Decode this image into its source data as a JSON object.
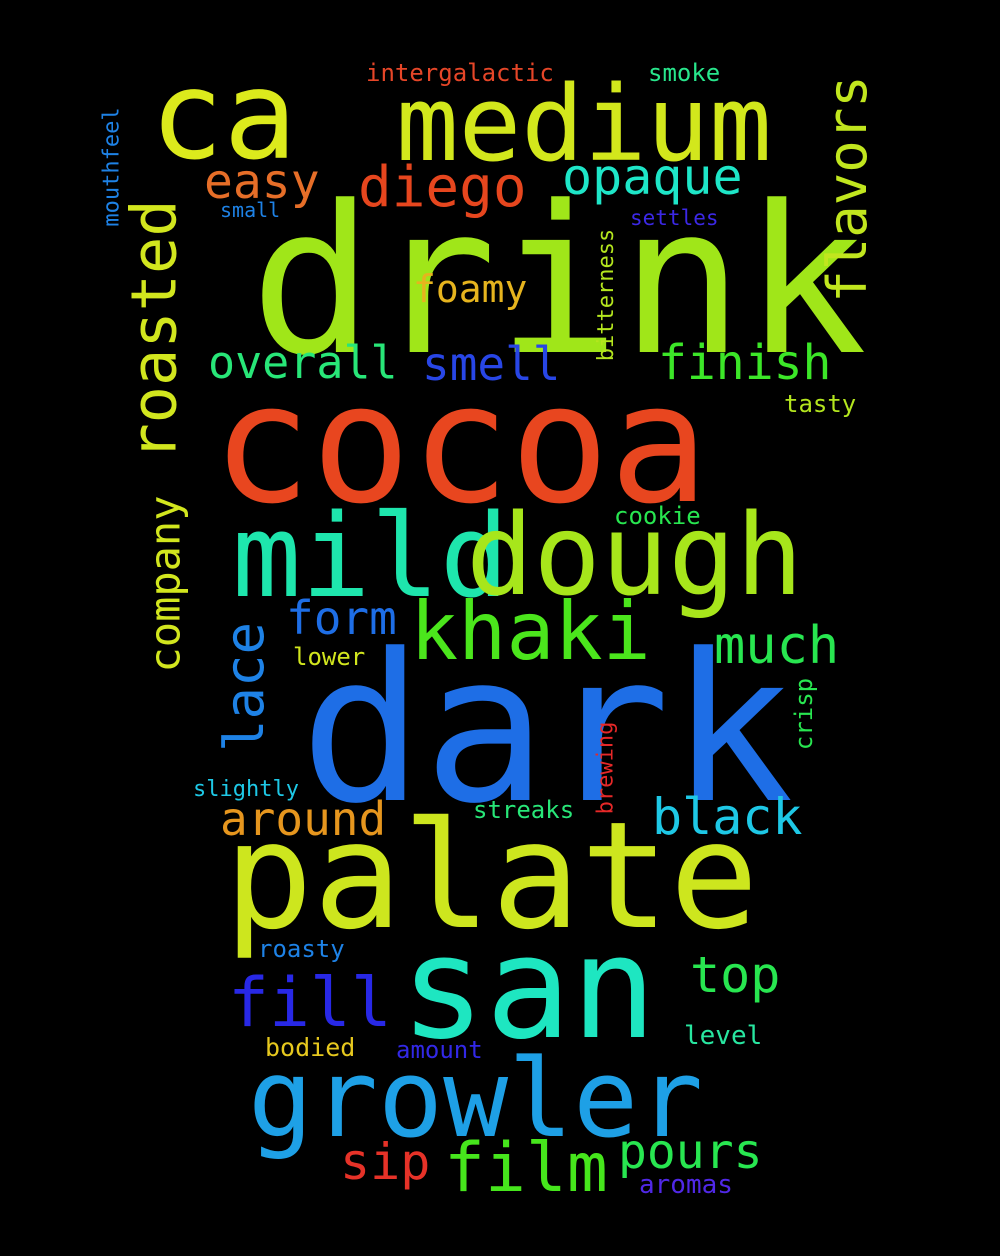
{
  "background": "#000000",
  "words": [
    {
      "id": "drink",
      "text": "drink",
      "color": "#a0e619",
      "rotated": false
    },
    {
      "id": "cocoa",
      "text": "cocoa",
      "color": "#e8461f",
      "rotated": false
    },
    {
      "id": "dark",
      "text": "dark",
      "color": "#1e6ee6",
      "rotated": false
    },
    {
      "id": "palate",
      "text": "palate",
      "color": "#cde61e",
      "rotated": false
    },
    {
      "id": "ca",
      "text": "ca",
      "color": "#dcea1c",
      "rotated": false
    },
    {
      "id": "medium",
      "text": "medium",
      "color": "#d2e71c",
      "rotated": false
    },
    {
      "id": "san",
      "text": "san",
      "color": "#1ee6c1",
      "rotated": false
    },
    {
      "id": "mild",
      "text": "mild",
      "color": "#1ee6ad",
      "rotated": false
    },
    {
      "id": "dough",
      "text": "dough",
      "color": "#a7e61b",
      "rotated": false
    },
    {
      "id": "growler",
      "text": "growler",
      "color": "#1ea0e6",
      "rotated": false
    },
    {
      "id": "khaki",
      "text": "khaki",
      "color": "#4be61c",
      "rotated": false
    },
    {
      "id": "roasted",
      "text": "roasted",
      "color": "#d2e61e",
      "rotated": true
    },
    {
      "id": "film",
      "text": "film",
      "color": "#46e61c",
      "rotated": false
    },
    {
      "id": "fill",
      "text": "fill",
      "color": "#2828e6",
      "rotated": false
    },
    {
      "id": "lace",
      "text": "lace",
      "color": "#1e82e6",
      "rotated": true
    },
    {
      "id": "flavors",
      "text": "flavors",
      "color": "#c1e61e",
      "rotated": true
    },
    {
      "id": "company",
      "text": "company",
      "color": "#d2e61e",
      "rotated": true
    },
    {
      "id": "diego",
      "text": "diego",
      "color": "#e6461e",
      "rotated": false
    },
    {
      "id": "opaque",
      "text": "opaque",
      "color": "#1ee6c8",
      "rotated": false
    },
    {
      "id": "easy",
      "text": "easy",
      "color": "#e66e28",
      "rotated": false
    },
    {
      "id": "finish",
      "text": "finish",
      "color": "#3ce628",
      "rotated": false
    },
    {
      "id": "overall",
      "text": "overall",
      "color": "#28e678",
      "rotated": false
    },
    {
      "id": "smell",
      "text": "smell",
      "color": "#2846e6",
      "rotated": false
    },
    {
      "id": "form",
      "text": "form",
      "color": "#1e6ee6",
      "rotated": false
    },
    {
      "id": "much",
      "text": "much",
      "color": "#28e650",
      "rotated": false
    },
    {
      "id": "around",
      "text": "around",
      "color": "#e6961e",
      "rotated": false
    },
    {
      "id": "black",
      "text": "black",
      "color": "#1ec8e6",
      "rotated": false
    },
    {
      "id": "top",
      "text": "top",
      "color": "#28e650",
      "rotated": false
    },
    {
      "id": "pours",
      "text": "pours",
      "color": "#28e650",
      "rotated": false
    },
    {
      "id": "sip",
      "text": "sip",
      "color": "#e63228",
      "rotated": false
    },
    {
      "id": "foamy",
      "text": "foamy",
      "color": "#e6b41e",
      "rotated": false
    },
    {
      "id": "intergalactic",
      "text": "intergalactic",
      "color": "#e64628",
      "rotated": false
    },
    {
      "id": "smoke",
      "text": "smoke",
      "color": "#28e68c",
      "rotated": false
    },
    {
      "id": "small",
      "text": "small",
      "color": "#1e82e6",
      "rotated": false
    },
    {
      "id": "settles",
      "text": "settles",
      "color": "#3c28e6",
      "rotated": false
    },
    {
      "id": "mouthfeel",
      "text": "mouthfeel",
      "color": "#1e82e6",
      "rotated": true
    },
    {
      "id": "bitterness",
      "text": "bitterness",
      "color": "#b4e61e",
      "rotated": true
    },
    {
      "id": "tasty",
      "text": "tasty",
      "color": "#b4e61e",
      "rotated": false
    },
    {
      "id": "cookie",
      "text": "cookie",
      "color": "#28e650",
      "rotated": false
    },
    {
      "id": "lower",
      "text": "lower",
      "color": "#d2e61e",
      "rotated": false
    },
    {
      "id": "crisp",
      "text": "crisp",
      "color": "#28e650",
      "rotated": true
    },
    {
      "id": "brewing",
      "text": "brewing",
      "color": "#e62828",
      "rotated": true
    },
    {
      "id": "slightly",
      "text": "slightly",
      "color": "#1ec8e6",
      "rotated": false
    },
    {
      "id": "streaks",
      "text": "streaks",
      "color": "#28e678",
      "rotated": false
    },
    {
      "id": "roasty",
      "text": "roasty",
      "color": "#1e82e6",
      "rotated": false
    },
    {
      "id": "level",
      "text": "level",
      "color": "#28e6a0",
      "rotated": false
    },
    {
      "id": "bodied",
      "text": "bodied",
      "color": "#e6c81e",
      "rotated": false
    },
    {
      "id": "amount",
      "text": "amount",
      "color": "#3228e6",
      "rotated": false
    },
    {
      "id": "aromas",
      "text": "aromas",
      "color": "#5028e6",
      "rotated": false
    }
  ]
}
